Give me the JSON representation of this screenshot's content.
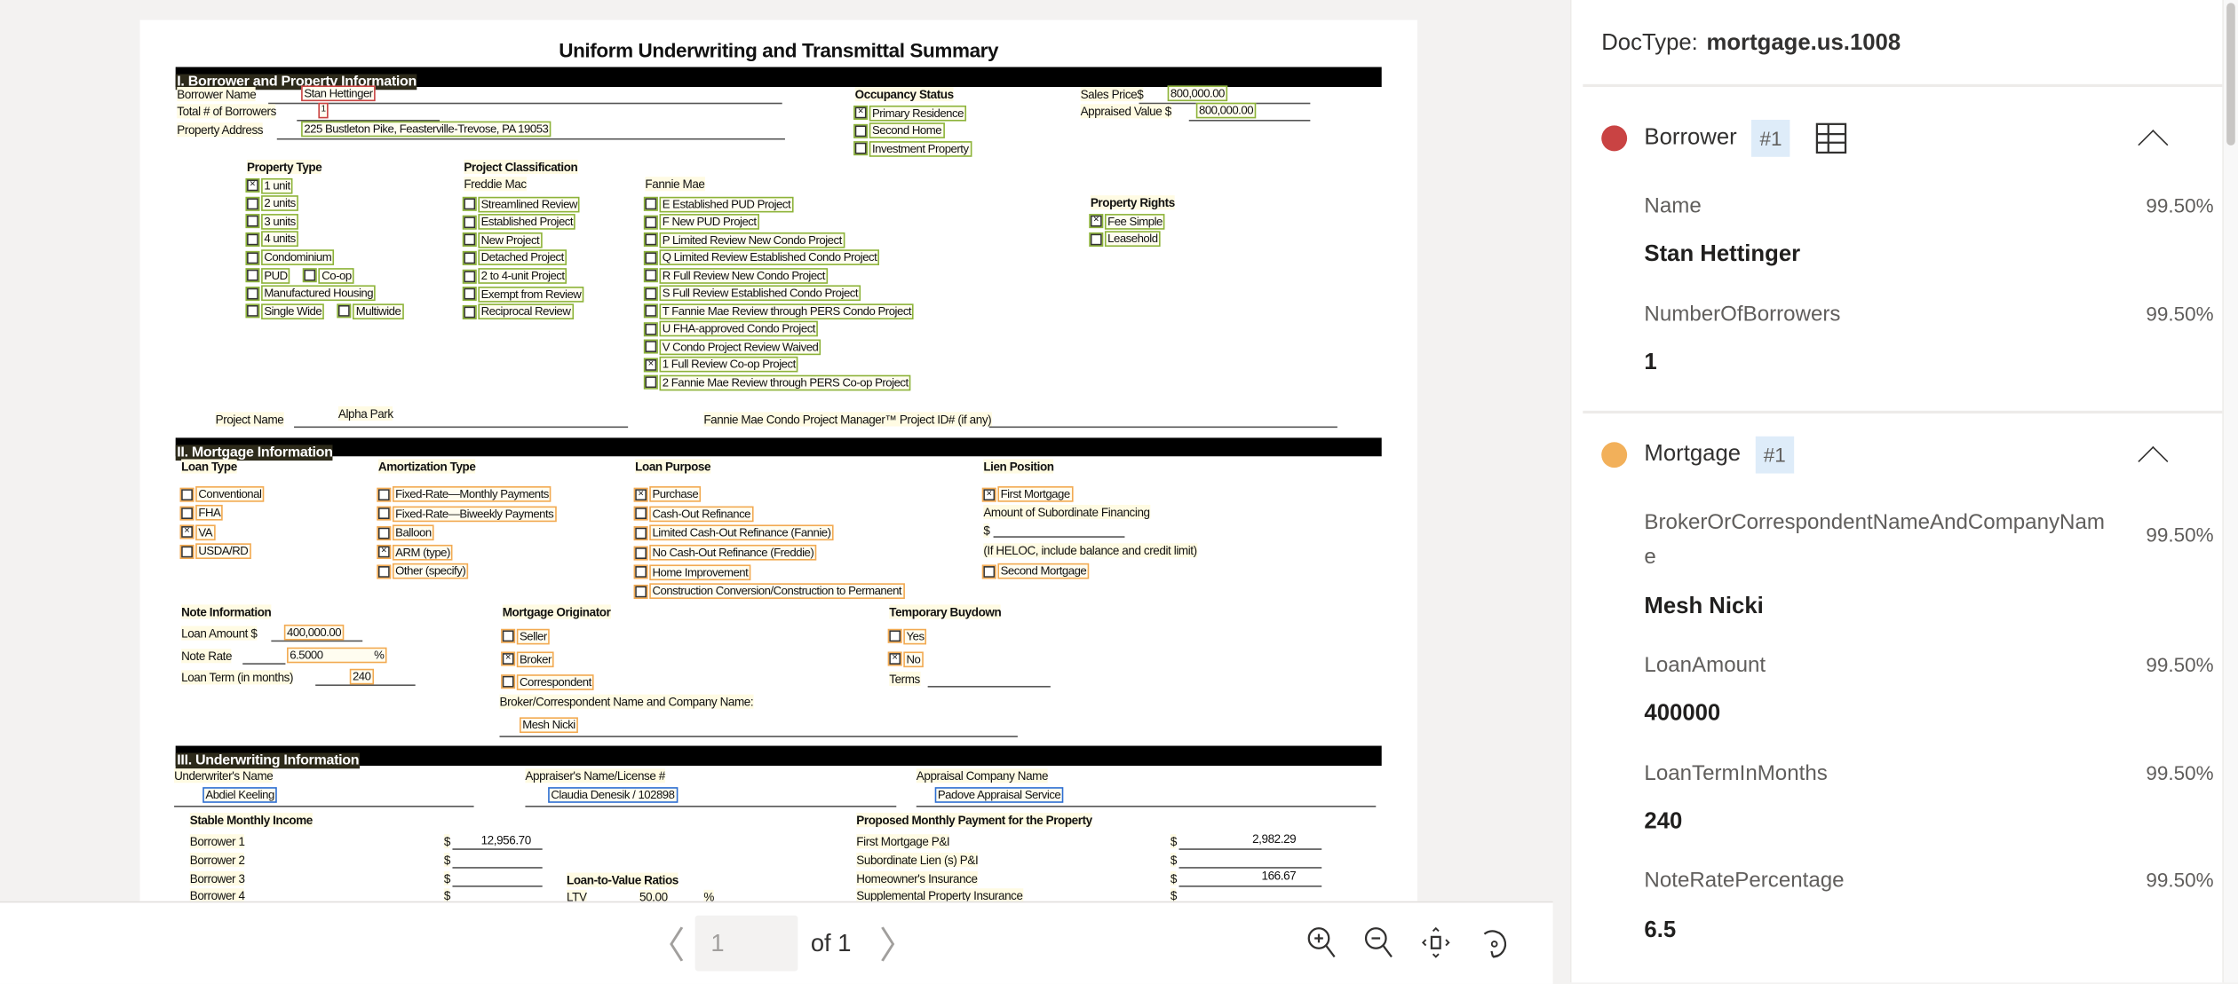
{
  "colors": {
    "borrower": "#c94343",
    "mortgage": "#f2aa52",
    "property": "#8db33a",
    "underwriting": "#2e6fd3"
  },
  "doc": {
    "title": "Uniform Underwriting and Transmittal Summary",
    "s1": {
      "bar": "I. Borrower and Property Information",
      "borrower_name_label": "Borrower Name",
      "borrower_name": "Stan Hettinger",
      "total_borrowers_label": "Total # of Borrowers",
      "total_borrowers": "1",
      "address_label": "Property Address",
      "address": "225 Bustleton Pike, Feasterville-Trevose, PA 19053",
      "occupancy_label": "Occupancy Status",
      "occupancy": [
        {
          "label": "Primary Residence",
          "checked": true
        },
        {
          "label": "Second Home",
          "checked": false
        },
        {
          "label": "Investment Property",
          "checked": false
        }
      ],
      "sales_price_label": "Sales Price$",
      "sales_price": "800,000.00",
      "appraised_label": "Appraised Value $",
      "appraised": "800,000.00",
      "property_type_label": "Property Type",
      "property_type": [
        {
          "label": "1 unit",
          "checked": true
        },
        {
          "label": "2 units",
          "checked": false
        },
        {
          "label": "3 units",
          "checked": false
        },
        {
          "label": "4 units",
          "checked": false
        },
        {
          "label": "Condominium",
          "checked": false
        },
        {
          "label": "PUD",
          "checked": false,
          "extra": "Co-op"
        },
        {
          "label": "Manufactured Housing",
          "checked": false
        },
        {
          "label": "Single Wide",
          "checked": false,
          "extra": "Multiwide"
        }
      ],
      "project_class_label": "Project Classification",
      "freddie_label": "Freddie Mac",
      "freddie": [
        {
          "label": "Streamlined Review",
          "checked": false
        },
        {
          "label": "Established Project",
          "checked": false
        },
        {
          "label": "New Project",
          "checked": false
        },
        {
          "label": "Detached Project",
          "checked": false
        },
        {
          "label": "2 to 4-unit Project",
          "checked": false
        },
        {
          "label": "Exempt from Review",
          "checked": false
        },
        {
          "label": "Reciprocal Review",
          "checked": false
        }
      ],
      "fannie_label": "Fannie Mae",
      "fannie": [
        {
          "label": "E Established PUD Project",
          "checked": false
        },
        {
          "label": "F New PUD Project",
          "checked": false
        },
        {
          "label": "P Limited Review New Condo Project",
          "checked": false
        },
        {
          "label": "Q Limited Review Established Condo Project",
          "checked": false
        },
        {
          "label": "R Full Review New Condo Project",
          "checked": false
        },
        {
          "label": "S Full Review Established Condo Project",
          "checked": false
        },
        {
          "label": "T Fannie Mae Review through PERS Condo Project",
          "checked": false
        },
        {
          "label": "U FHA-approved Condo Project",
          "checked": false
        },
        {
          "label": "V Condo Project Review Waived",
          "checked": false
        },
        {
          "label": "1 Full Review Co-op Project",
          "checked": true
        },
        {
          "label": "2 Fannie Mae Review through PERS Co-op Project",
          "checked": false
        }
      ],
      "rights_label": "Property Rights",
      "rights": [
        {
          "label": "Fee Simple",
          "checked": true
        },
        {
          "label": "Leasehold",
          "checked": false
        }
      ],
      "project_name_label": "Project Name",
      "project_name": "Alpha Park",
      "condo_id_label": "Fannie Mae Condo Project Manager™ Project ID# (if any)"
    },
    "s2": {
      "bar": "II. Mortgage Information",
      "loan_type_label": "Loan Type",
      "loan_type": [
        {
          "label": "Conventional",
          "checked": false
        },
        {
          "label": "FHA",
          "checked": false
        },
        {
          "label": "VA",
          "checked": true
        },
        {
          "label": "USDA/RD",
          "checked": false
        }
      ],
      "amort_label": "Amortization Type",
      "amort": [
        {
          "label": "Fixed-Rate—Monthly Payments",
          "checked": false
        },
        {
          "label": "Fixed-Rate—Biweekly Payments",
          "checked": false
        },
        {
          "label": "Balloon",
          "checked": false
        },
        {
          "label": "ARM (type)",
          "checked": true
        },
        {
          "label": "Other (specify)",
          "checked": false
        }
      ],
      "purpose_label": "Loan Purpose",
      "purpose": [
        {
          "label": "Purchase",
          "checked": true
        },
        {
          "label": "Cash-Out Refinance",
          "checked": false
        },
        {
          "label": "Limited Cash-Out Refinance (Fannie)",
          "checked": false
        },
        {
          "label": "No Cash-Out Refinance (Freddie)",
          "checked": false
        },
        {
          "label": "Home Improvement",
          "checked": false
        },
        {
          "label": "Construction Conversion/Construction to Permanent",
          "checked": false
        }
      ],
      "lien_label": "Lien Position",
      "lien_first": [
        {
          "label": "First Mortgage",
          "checked": true
        }
      ],
      "sub_fin_label": "Amount of Subordinate Financing",
      "dollar": "$",
      "heloc_label": "(If HELOC, include balance and credit limit)",
      "lien_second": [
        {
          "label": "Second Mortgage",
          "checked": false
        }
      ],
      "note_label": "Note Information",
      "loan_amount_label": "Loan Amount $",
      "loan_amount": "400,000.00",
      "note_rate_label": "Note Rate",
      "note_rate": "6.5000",
      "pct": "%",
      "loan_term_label": "Loan Term (in months)",
      "loan_term": "240",
      "originator_label": "Mortgage Originator",
      "originator": [
        {
          "label": "Seller",
          "checked": false
        },
        {
          "label": "Broker",
          "checked": true
        },
        {
          "label": "Correspondent",
          "checked": false
        }
      ],
      "broker_name_label": "Broker/Correspondent Name and Company Name:",
      "broker_name": "Mesh Nicki",
      "buydown_label": "Temporary Buydown",
      "buydown": [
        {
          "label": "Yes",
          "checked": false
        },
        {
          "label": "No",
          "checked": true
        }
      ],
      "terms_label": "Terms"
    },
    "s3": {
      "bar": "III. Underwriting Information",
      "underwriter_label": "Underwriter's Name",
      "underwriter": "Abdiel Keeling",
      "appraiser_label": "Appraiser's Name/License #",
      "appraiser": "Claudia Denesik / 102898",
      "company_label": "Appraisal Company Name",
      "company": "Padove Appraisal Service",
      "income_label": "Stable Monthly Income",
      "income": [
        {
          "label": "Borrower 1",
          "value": "12,956.70"
        },
        {
          "label": "Borrower 2",
          "value": ""
        },
        {
          "label": "Borrower 3",
          "value": ""
        },
        {
          "label": "Borrower 4",
          "value": ""
        }
      ],
      "ltv_title": "Loan-to-Value Ratios",
      "ltv_label": "LTV",
      "ltv": "50.00",
      "pct": "%",
      "payment_label": "Proposed Monthly Payment for the Property",
      "payments": [
        {
          "label": "First Mortgage P&I",
          "value": "2,982.29"
        },
        {
          "label": "Subordinate Lien (s) P&I",
          "value": ""
        },
        {
          "label": "Homeowner's Insurance",
          "value": "166.67"
        },
        {
          "label": "Supplemental Property Insurance",
          "value": ""
        }
      ],
      "dollar": "$"
    }
  },
  "toolbar": {
    "page": "1",
    "of": "of 1",
    "prev_icon": "chevron-left",
    "next_icon": "chevron-right",
    "icons": [
      "zoom-in",
      "zoom-out",
      "fit-page",
      "rotate"
    ]
  },
  "panel": {
    "doctype_label": "DocType:",
    "doctype": "mortgage.us.1008",
    "borrower": {
      "title": "Borrower",
      "tag": "#1",
      "fields": [
        {
          "label": "Name",
          "confidence": "99.50%",
          "value": "Stan Hettinger"
        },
        {
          "label": "NumberOfBorrowers",
          "confidence": "99.50%",
          "value": "1"
        }
      ]
    },
    "mortgage": {
      "title": "Mortgage",
      "tag": "#1",
      "fields": [
        {
          "label": "BrokerOrCorrespondentNameAndCompanyName",
          "confidence": "99.50%",
          "value": "Mesh Nicki"
        },
        {
          "label": "LoanAmount",
          "confidence": "99.50%",
          "value": "400000"
        },
        {
          "label": "LoanTermInMonths",
          "confidence": "99.50%",
          "value": "240"
        },
        {
          "label": "NoteRatePercentage",
          "confidence": "99.50%",
          "value": "6.5"
        }
      ]
    }
  }
}
